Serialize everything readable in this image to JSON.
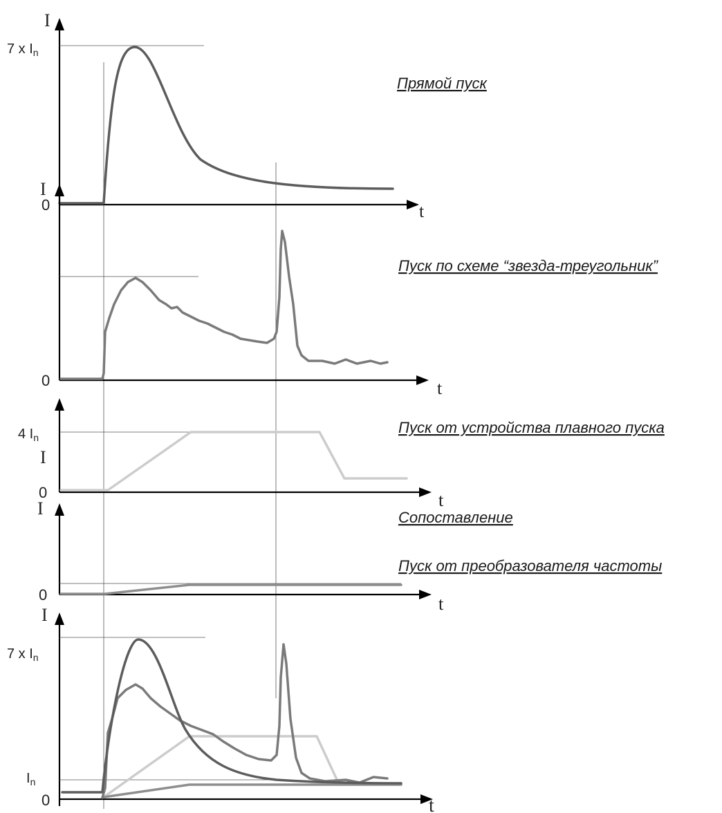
{
  "panels": [
    {
      "id": "direct",
      "title": "Прямой пуск",
      "i_label": "I",
      "zero_label": "0",
      "t_label": "t",
      "level_label": "7 x I",
      "level_sub": "n"
    },
    {
      "id": "star_delta",
      "title": "Пуск по схеме “звезда-треугольник”",
      "i_label": "I",
      "zero_label": "0",
      "t_label": "t"
    },
    {
      "id": "soft_starter",
      "title": "Пуск от устройства плавного пуска",
      "i_label": "I",
      "zero_label": "0",
      "t_label": "t",
      "level_label": "4 I",
      "level_sub": "n"
    },
    {
      "id": "vfd",
      "title": "Пуск от преобразователя частоты",
      "i_label": "I",
      "zero_label": "0",
      "t_label": "t"
    },
    {
      "id": "comparison",
      "title": "Сопоставление",
      "i_label": "I",
      "zero_label": "0",
      "t_label": "t",
      "level_label": "7 x I",
      "level_sub": "n",
      "in_label": "I",
      "in_sub": "n"
    }
  ],
  "colors": {
    "direct": "#5c5c5c",
    "star_delta": "#7a7a7a",
    "soft_starter": "#cccccc",
    "vfd": "#8e8e8e",
    "axes": "#000000"
  }
}
